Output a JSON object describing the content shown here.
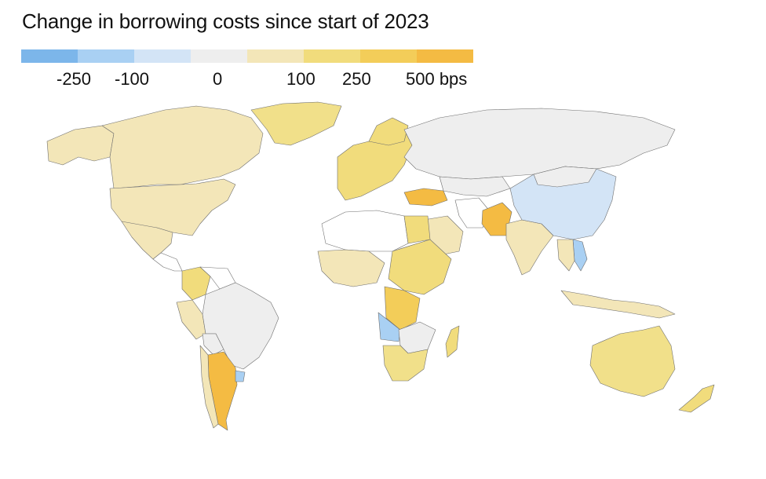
{
  "title": "Change in borrowing costs since start of 2023",
  "legend": {
    "colors": [
      "#7cb6ea",
      "#a9d0f3",
      "#d3e4f6",
      "#eeeeee",
      "#f3e6b8",
      "#f1dc7c",
      "#f3cd59",
      "#f4bb43"
    ],
    "ticks": [
      {
        "label": "-250"
      },
      {
        "label": "-100"
      },
      {
        "label": "0"
      },
      {
        "label": "100"
      },
      {
        "label": "250"
      },
      {
        "label": "500 bps"
      }
    ]
  },
  "map": {
    "no_data_color": "#ffffff",
    "regions": [
      {
        "name": "Greenland",
        "color": "#f1e08a"
      },
      {
        "name": "Canada",
        "color": "#f3e6b8"
      },
      {
        "name": "United States",
        "color": "#f3e6b8"
      },
      {
        "name": "Alaska",
        "color": "#f3e6b8"
      },
      {
        "name": "Mexico",
        "color": "#f3e6b8"
      },
      {
        "name": "Colombia",
        "color": "#f1dc7c"
      },
      {
        "name": "Peru",
        "color": "#f3e6b8"
      },
      {
        "name": "Brazil",
        "color": "#eeeeee"
      },
      {
        "name": "Bolivia",
        "color": "#eeeeee"
      },
      {
        "name": "Argentina",
        "color": "#f4bb43"
      },
      {
        "name": "Chile",
        "color": "#f3e6b8"
      },
      {
        "name": "Uruguay",
        "color": "#a9d0f3"
      },
      {
        "name": "Russia",
        "color": "#eeeeee"
      },
      {
        "name": "China",
        "color": "#d3e4f6"
      },
      {
        "name": "Turkey",
        "color": "#f4bb43"
      },
      {
        "name": "Pakistan",
        "color": "#f4bb43"
      },
      {
        "name": "India",
        "color": "#f3e6b8"
      },
      {
        "name": "Egypt",
        "color": "#f1dc7c"
      },
      {
        "name": "Angola",
        "color": "#a9d0f3"
      },
      {
        "name": "DR Congo",
        "color": "#f3cd59"
      },
      {
        "name": "South Africa",
        "color": "#f1e08a"
      },
      {
        "name": "Madagascar",
        "color": "#f1dc7c"
      },
      {
        "name": "Australia",
        "color": "#f1e08a"
      },
      {
        "name": "New Zealand",
        "color": "#f1dc7c"
      },
      {
        "name": "Vietnam",
        "color": "#a9d0f3"
      },
      {
        "name": "Indonesia",
        "color": "#f3e6b8"
      },
      {
        "name": "Saudi Arabia",
        "color": "#f3e6b8"
      },
      {
        "name": "Iran",
        "color": "#ffffff"
      }
    ]
  }
}
